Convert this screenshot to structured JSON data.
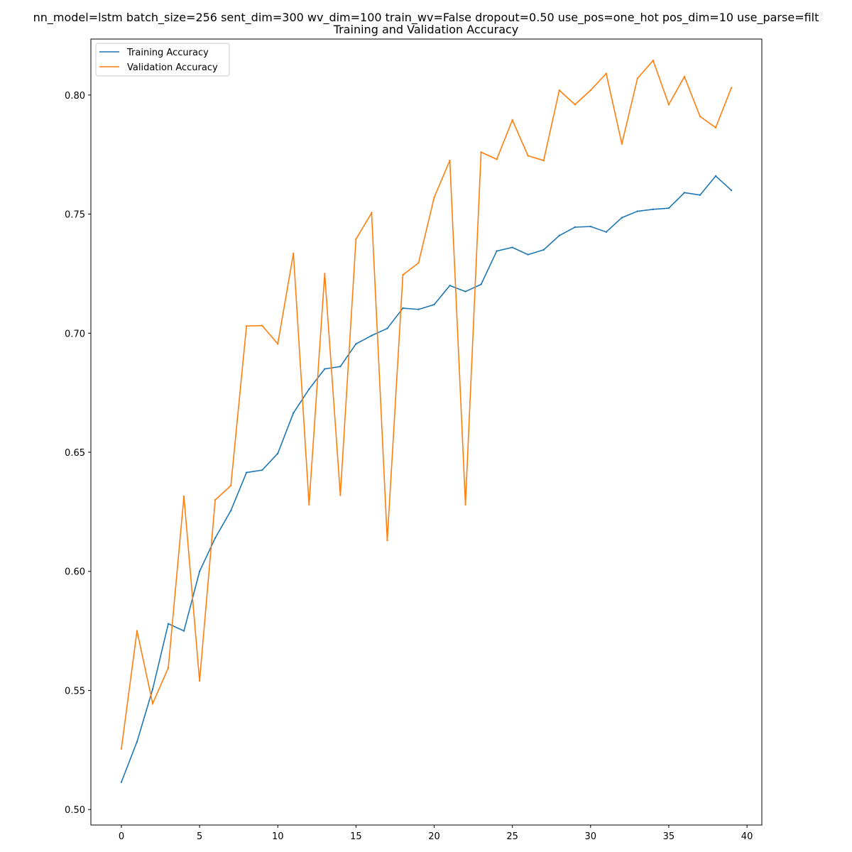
{
  "chart_data": {
    "type": "line",
    "title": "nn_model=lstm batch_size=256 sent_dim=300 wv_dim=100 train_wv=False dropout=0.50 use_pos=one_hot pos_dim=10 use_parse=filt",
    "subtitle": "Training and Validation Accuracy",
    "xlabel": "",
    "ylabel": "",
    "xlim": [
      -1.95,
      40.95
    ],
    "ylim": [
      0.4935,
      0.8235
    ],
    "x_ticks": [
      0,
      5,
      10,
      15,
      20,
      25,
      30,
      35,
      40
    ],
    "x_tick_labels": [
      "0",
      "5",
      "10",
      "15",
      "20",
      "25",
      "30",
      "35",
      "40"
    ],
    "y_ticks": [
      0.5,
      0.55,
      0.6,
      0.65,
      0.7,
      0.75,
      0.8
    ],
    "y_tick_labels": [
      "0.50",
      "0.55",
      "0.60",
      "0.65",
      "0.70",
      "0.75",
      "0.80"
    ],
    "grid": false,
    "legend_position": "top-left",
    "x": [
      0,
      1,
      2,
      3,
      4,
      5,
      6,
      7,
      8,
      9,
      10,
      11,
      12,
      13,
      14,
      15,
      16,
      17,
      18,
      19,
      20,
      21,
      22,
      23,
      24,
      25,
      26,
      27,
      28,
      29,
      30,
      31,
      32,
      33,
      34,
      35,
      36,
      37,
      38,
      39
    ],
    "series": [
      {
        "name": "Training Accuracy",
        "color": "#1f77b4",
        "values": [
          0.5115,
          0.5285,
          0.5505,
          0.578,
          0.575,
          0.6,
          0.614,
          0.6255,
          0.6415,
          0.6425,
          0.6495,
          0.6665,
          0.6765,
          0.685,
          0.686,
          0.6955,
          0.699,
          0.702,
          0.7105,
          0.71,
          0.712,
          0.72,
          0.7175,
          0.7205,
          0.7345,
          0.736,
          0.733,
          0.735,
          0.741,
          0.7445,
          0.7448,
          0.7425,
          0.7485,
          0.7512,
          0.752,
          0.7525,
          0.759,
          0.758,
          0.766,
          0.76
        ]
      },
      {
        "name": "Validation Accuracy",
        "color": "#ff7f0e",
        "values": [
          0.5255,
          0.575,
          0.5445,
          0.5595,
          0.6315,
          0.554,
          0.63,
          0.636,
          0.703,
          0.7032,
          0.6955,
          0.7335,
          0.628,
          0.725,
          0.632,
          0.7395,
          0.7505,
          0.613,
          0.7245,
          0.7295,
          0.757,
          0.7725,
          0.628,
          0.776,
          0.773,
          0.7895,
          0.7745,
          0.7725,
          0.802,
          0.796,
          0.802,
          0.809,
          0.7795,
          0.807,
          0.8145,
          0.796,
          0.8077,
          0.791,
          0.7863,
          0.803
        ]
      }
    ]
  }
}
